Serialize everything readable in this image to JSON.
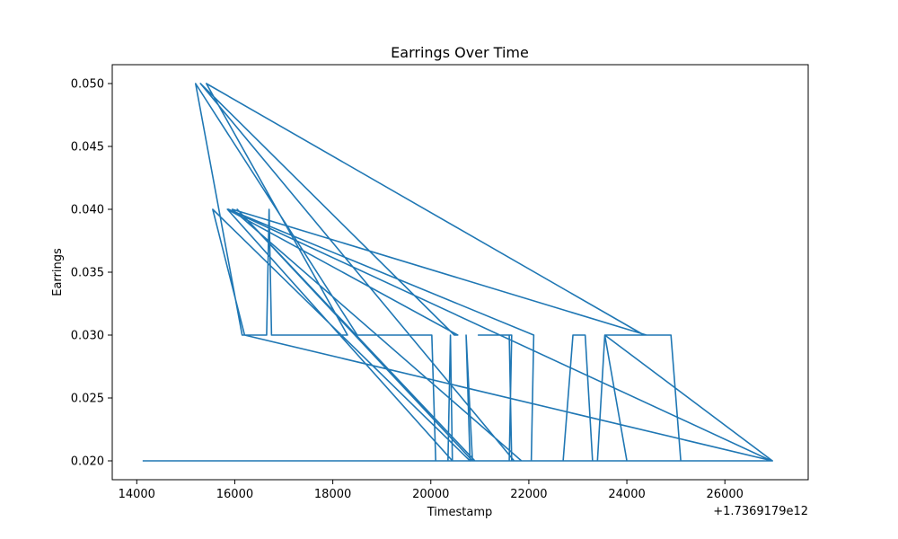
{
  "chart_data": {
    "type": "line",
    "title": "Earrings Over Time",
    "xlabel": "Timestamp",
    "ylabel": "Earrings",
    "x_offset_label": "+1.7369179e12",
    "xlim": [
      13500,
      27700
    ],
    "ylim": [
      0.0185,
      0.0515
    ],
    "xticks": [
      14000,
      16000,
      18000,
      20000,
      22000,
      24000,
      26000
    ],
    "xtick_labels": [
      "14000",
      "16000",
      "18000",
      "20000",
      "22000",
      "24000",
      "26000"
    ],
    "yticks": [
      0.02,
      0.025,
      0.03,
      0.035,
      0.04,
      0.045,
      0.05
    ],
    "ytick_labels": [
      "0.020",
      "0.025",
      "0.030",
      "0.035",
      "0.040",
      "0.045",
      "0.050"
    ],
    "grid": false,
    "series": [
      {
        "color": "#1f77b4",
        "x": [
          14120,
          20050,
          20100,
          20020,
          19930,
          19550,
          18500,
          15200,
          16150,
          16650,
          16650,
          16700,
          16750,
          17050,
          17150,
          18300,
          15420,
          24350,
          24900,
          25100,
          25030,
          24000,
          23550,
          23400,
          23300,
          23150,
          22900,
          22700,
          22650,
          20350,
          20400,
          20440,
          15850,
          20550,
          20480,
          15300,
          21700,
          21600,
          21650,
          20970,
          21020,
          21600,
          21650,
          26950,
          15870,
          22100,
          22050,
          21980,
          21850,
          15950,
          24400,
          23550,
          26970,
          16200,
          15550,
          20800,
          20720,
          20850,
          16050,
          20900,
          21000,
          21700,
          14120
        ],
        "y": [
          0.02,
          0.02,
          0.02,
          0.03,
          0.03,
          0.03,
          0.03,
          0.05,
          0.03,
          0.03,
          0.03,
          0.04,
          0.03,
          0.03,
          0.03,
          0.03,
          0.05,
          0.03,
          0.03,
          0.02,
          0.02,
          0.02,
          0.03,
          0.02,
          0.02,
          0.03,
          0.03,
          0.02,
          0.02,
          0.02,
          0.03,
          0.02,
          0.04,
          0.03,
          0.03,
          0.05,
          0.02,
          0.02,
          0.03,
          0.03,
          0.03,
          0.03,
          0.02,
          0.02,
          0.04,
          0.03,
          0.02,
          0.02,
          0.02,
          0.04,
          0.03,
          0.03,
          0.02,
          0.03,
          0.04,
          0.02,
          0.03,
          0.02,
          0.04,
          0.02,
          0.02,
          0.02,
          0.02
        ]
      }
    ]
  }
}
